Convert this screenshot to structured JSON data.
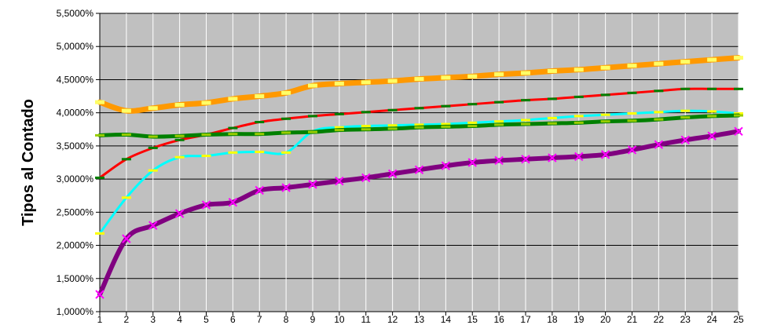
{
  "chart_data": {
    "type": "line",
    "title": "",
    "xlabel": "",
    "ylabel": "Tipos al Contado",
    "categories": [
      1,
      2,
      3,
      4,
      5,
      6,
      7,
      8,
      9,
      10,
      11,
      12,
      13,
      14,
      15,
      16,
      17,
      18,
      19,
      20,
      21,
      22,
      23,
      24,
      25
    ],
    "ylim": [
      1.0,
      5.5
    ],
    "ytick_labels": [
      "1,0000%",
      "1,5000%",
      "2,0000%",
      "2,5000%",
      "3,0000%",
      "3,5000%",
      "4,0000%",
      "4,5000%",
      "5,0000%",
      "5,5000%"
    ],
    "ytick_values": [
      1.0,
      1.5,
      2.0,
      2.5,
      3.0,
      3.5,
      4.0,
      4.5,
      5.0,
      5.5
    ],
    "grid": true,
    "legend": "none",
    "plot_background": "#c0c0c0",
    "series": [
      {
        "color": "#ff9900",
        "dash_color": "#ffff66",
        "width": 7,
        "values": [
          4.16,
          4.03,
          4.07,
          4.12,
          4.15,
          4.21,
          4.25,
          4.3,
          4.41,
          4.44,
          4.46,
          4.48,
          4.51,
          4.53,
          4.55,
          4.58,
          4.6,
          4.63,
          4.65,
          4.68,
          4.71,
          4.74,
          4.77,
          4.8,
          4.83
        ]
      },
      {
        "color": "#ff0000",
        "dash_color": "#008000",
        "width": 3,
        "values": [
          3.02,
          3.3,
          3.47,
          3.59,
          3.67,
          3.77,
          3.86,
          3.91,
          3.95,
          3.98,
          4.01,
          4.04,
          4.07,
          4.1,
          4.13,
          4.16,
          4.19,
          4.21,
          4.24,
          4.27,
          4.3,
          4.33,
          4.36,
          4.36,
          4.36
        ]
      },
      {
        "color": "#00ffff",
        "dash_color": "#ffff00",
        "width": 3,
        "values": [
          2.18,
          2.72,
          3.13,
          3.33,
          3.35,
          3.4,
          3.41,
          3.4,
          3.72,
          3.78,
          3.8,
          3.81,
          3.82,
          3.83,
          3.85,
          3.87,
          3.89,
          3.92,
          3.95,
          3.97,
          3.99,
          4.01,
          4.03,
          4.02,
          3.99
        ]
      },
      {
        "color": "#008000",
        "dash_color": "#99cc00",
        "width": 5,
        "values": [
          3.66,
          3.67,
          3.64,
          3.65,
          3.67,
          3.68,
          3.68,
          3.7,
          3.71,
          3.74,
          3.75,
          3.76,
          3.78,
          3.79,
          3.8,
          3.82,
          3.83,
          3.84,
          3.85,
          3.87,
          3.88,
          3.9,
          3.93,
          3.95,
          3.96
        ]
      },
      {
        "color": "#800080",
        "marker_color": "#ff00ff",
        "width": 6,
        "values": [
          1.26,
          2.1,
          2.3,
          2.48,
          2.61,
          2.65,
          2.83,
          2.87,
          2.92,
          2.97,
          3.02,
          3.08,
          3.14,
          3.2,
          3.25,
          3.28,
          3.3,
          3.32,
          3.34,
          3.37,
          3.44,
          3.52,
          3.59,
          3.65,
          3.72
        ]
      }
    ]
  }
}
